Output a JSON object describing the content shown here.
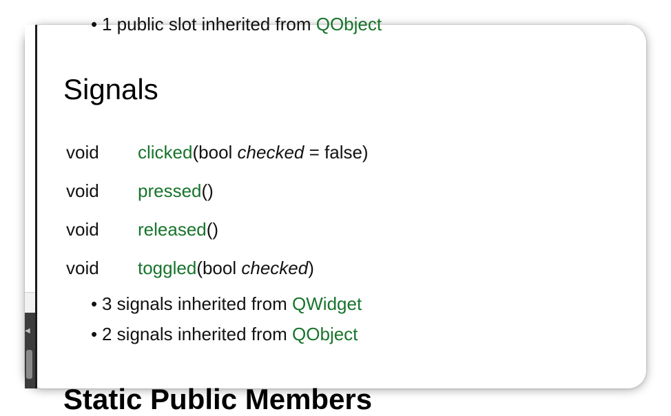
{
  "top_bullet": {
    "text": "1 public slot inherited from ",
    "link": "QObject"
  },
  "section": {
    "title": "Signals",
    "signals": [
      {
        "type": "void",
        "name": "clicked",
        "args_open": "(bool ",
        "arg": "checked",
        "args_close": " = false)"
      },
      {
        "type": "void",
        "name": "pressed",
        "args_open": "()",
        "arg": "",
        "args_close": ""
      },
      {
        "type": "void",
        "name": "released",
        "args_open": "()",
        "arg": "",
        "args_close": ""
      },
      {
        "type": "void",
        "name": "toggled",
        "args_open": "(bool ",
        "arg": "checked",
        "args_close": ")"
      }
    ],
    "inherited": [
      {
        "text": "3 signals inherited from ",
        "link": "QWidget"
      },
      {
        "text": "2 signals inherited from ",
        "link": "QObject"
      }
    ]
  },
  "next_section_title": "Static Public Members",
  "colors": {
    "link": "#17742b",
    "text": "#111111"
  }
}
